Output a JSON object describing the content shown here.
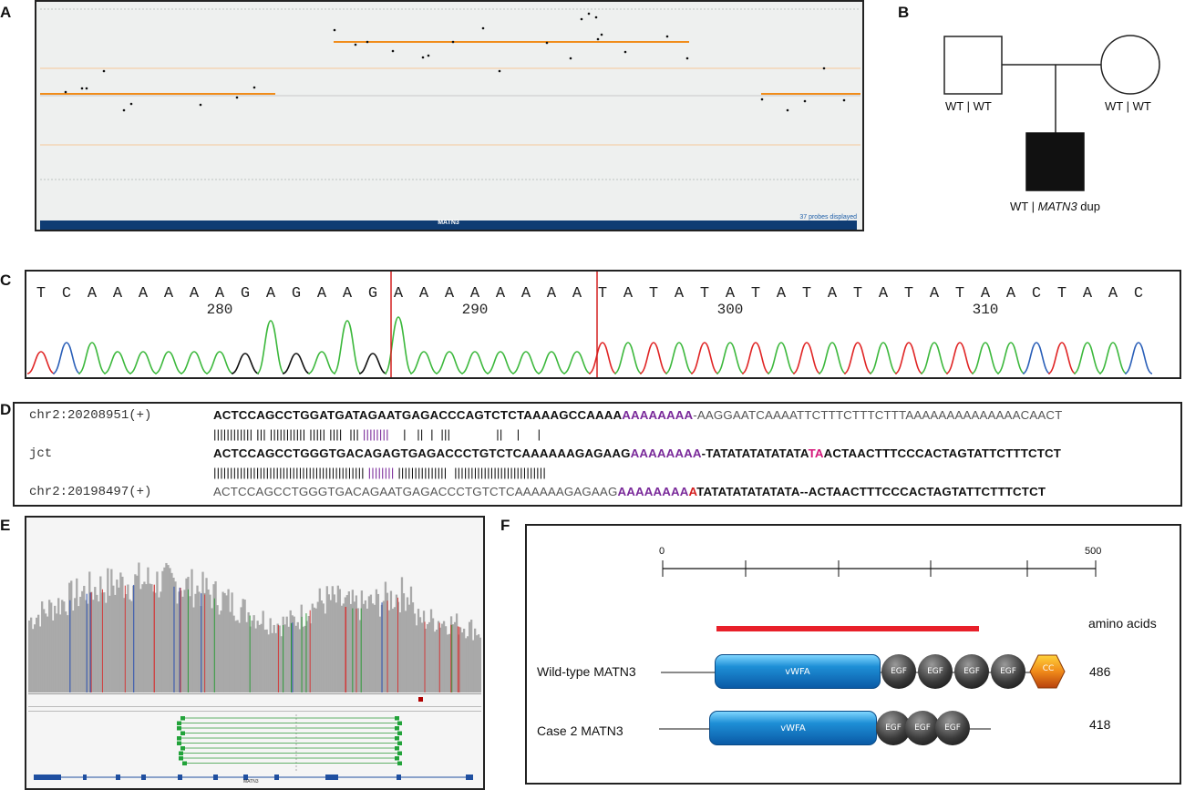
{
  "panels": {
    "A": "A",
    "B": "B",
    "C": "C",
    "D": "D",
    "E": "E",
    "F": "F"
  },
  "panel_a": {
    "gene": "MATN3",
    "probes_text": "37 probes displayed",
    "segments": [
      {
        "from": 0.0,
        "to": 0.3,
        "level": "normal"
      },
      {
        "from": 0.36,
        "to": 0.79,
        "level": "gain"
      },
      {
        "from": 0.88,
        "to": 1.0,
        "level": "normal"
      }
    ]
  },
  "panel_b": {
    "father_genotype": "WT | WT",
    "mother_genotype": "WT | WT",
    "child_genotype_prefix": "WT | ",
    "child_gene": "MATN3",
    "child_genotype_suffix": " dup"
  },
  "panel_c": {
    "bases": [
      "T",
      "C",
      "A",
      "A",
      "A",
      "A",
      "A",
      "A",
      "G",
      "A",
      "G",
      "A",
      "A",
      "G",
      "A",
      "A",
      "A",
      "A",
      "A",
      "A",
      "A",
      "A",
      "T",
      "A",
      "T",
      "A",
      "T",
      "A",
      "T",
      "A",
      "T",
      "A",
      "T",
      "A",
      "T",
      "A",
      "T",
      "A",
      "A",
      "C",
      "T",
      "A",
      "A",
      "C"
    ],
    "positions": [
      "280",
      "290",
      "300",
      "310"
    ]
  },
  "panel_d": {
    "rows": [
      {
        "label": "chr2:20208951(+)",
        "segments": [
          {
            "t": "ACTCCAGCCTGGATGATAGAATGAGACCCAGTCTCTAAAAGCCAAAA",
            "c": "#111",
            "b": true
          },
          {
            "t": "AAAAAAAA",
            "c": "#7a2a9a",
            "b": true
          },
          {
            "t": "-AAGGAATCAAAATTCTTTCTTTCTTTAAAAAAAAAAAAAACAACT",
            "c": "#555",
            "b": false
          }
        ]
      },
      {
        "label": "",
        "segments": [
          {
            "t": "|||||||||||| ||| ||||||||||| ||||| ||||  ||| ",
            "c": "#111",
            "b": false
          },
          {
            "t": "||||||||",
            "c": "#7a2a9a",
            "b": false
          },
          {
            "t": "    |   ||  |  |||             ||    |     |  ",
            "c": "#111",
            "b": false
          }
        ]
      },
      {
        "label": "jct",
        "segments": [
          {
            "t": "ACTCCAGCCTGGGTGACAGAGTGAGACCCTGTCTCAAAAAAGAGAAG",
            "c": "#111",
            "b": true
          },
          {
            "t": "AAAAAAAA",
            "c": "#7a2a9a",
            "b": true
          },
          {
            "t": "-TATATATATATATA",
            "c": "#111",
            "b": true
          },
          {
            "t": "TA",
            "c": "#d4177a",
            "b": true
          },
          {
            "t": "ACTAACTTTCCCACTAGTATTCTTTCTCT",
            "c": "#111",
            "b": true
          }
        ]
      },
      {
        "label": "",
        "segments": [
          {
            "t": "|||||||||||||||||||||||||||||||||||||||||||||| ",
            "c": "#111",
            "b": false
          },
          {
            "t": "||||||||",
            "c": "#7a2a9a",
            "b": false
          },
          {
            "t": " |||||||||||||||  ||||||||||||||||||||||||||||",
            "c": "#111",
            "b": false
          }
        ]
      },
      {
        "label": "chr2:20198497(+)",
        "segments": [
          {
            "t": "ACTCCAGCCTGGGTGACAGAATGAGACCCTGTCTCAAAAAAGAGAAG",
            "c": "#555",
            "b": false
          },
          {
            "t": "AAAAAAAA",
            "c": "#7a2a9a",
            "b": true
          },
          {
            "t": "A",
            "c": "#d42020",
            "b": true
          },
          {
            "t": "TATATATATATATA--ACTAACTTTCCCACTAGTATTCTTTCTCT",
            "c": "#111",
            "b": true
          }
        ]
      }
    ]
  },
  "panel_e": {
    "gene_label": "MATN3"
  },
  "panel_f": {
    "scale_start": "0",
    "scale_end": "500",
    "unit_label": "amino acids",
    "wild_type": {
      "name": "Wild-type MATN3",
      "length": "486",
      "domains": [
        "vWFA",
        "EGF",
        "EGF",
        "EGF",
        "EGF",
        "CC"
      ]
    },
    "case2": {
      "name": "Case 2 MATN3",
      "length": "418",
      "domains": [
        "vWFA",
        "EGF",
        "EGF",
        "EGF"
      ]
    }
  },
  "colors": {
    "red_bar": "#e8202a",
    "box_red": "#d42020",
    "purple": "#7a2a9a"
  }
}
